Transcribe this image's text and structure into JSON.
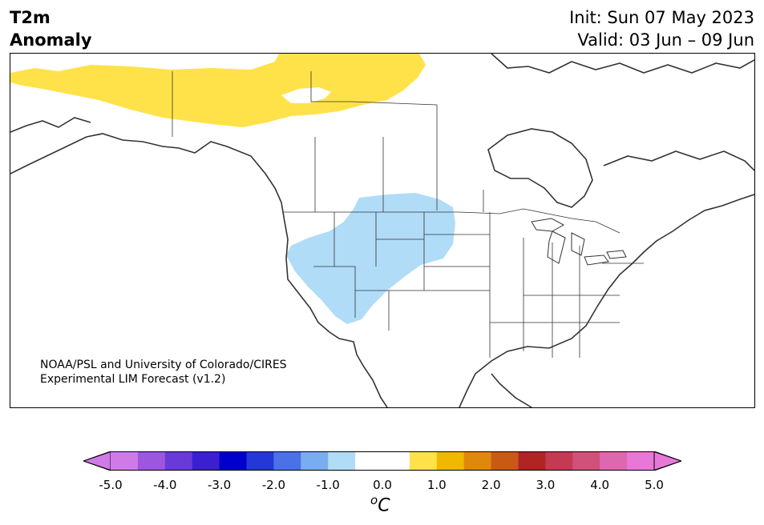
{
  "title": {
    "variable": "T2m",
    "subtitle": "Anomaly",
    "init": "Init: Sun 07 May 2023",
    "valid": "Valid: 03 Jun – 09 Jun"
  },
  "credit": {
    "line1": "NOAA/PSL and University of Colorado/CIRES",
    "line2": "Experimental LIM Forecast (v1.2)"
  },
  "colorbar": {
    "unit": "C",
    "unit_prefix": "o",
    "ticks": [
      "-5.0",
      "-4.0",
      "-3.0",
      "-2.0",
      "-1.0",
      "0.0",
      "1.0",
      "2.0",
      "3.0",
      "4.0",
      "5.0"
    ],
    "colors": [
      "#d07ae8",
      "#9d56de",
      "#6a3ad8",
      "#3a20d0",
      "#0000cc",
      "#2438d8",
      "#4a72e6",
      "#78aef0",
      "#b0dcf8",
      "#ffffff",
      "#ffffff",
      "#ffe24a",
      "#f0b800",
      "#e0880e",
      "#c85a16",
      "#b02424",
      "#c43a52",
      "#d0527a",
      "#de68b0",
      "#e878d8"
    ],
    "under_color": "#d07ae8",
    "over_color": "#e878d8"
  },
  "anomaly_regions": [
    {
      "name": "northern-canada-warm",
      "color": "#ffe24a"
    },
    {
      "name": "western-us-cool",
      "color": "#b0dcf8"
    }
  ]
}
